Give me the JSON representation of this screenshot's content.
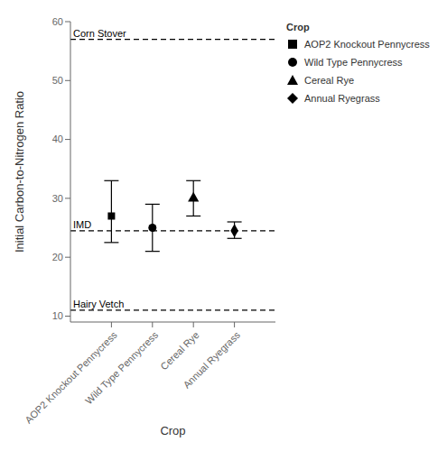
{
  "chart_data": {
    "type": "scatter",
    "categories": [
      "AOP2 Knockout Pennycress",
      "Wild Type Pennycress",
      "Cereal Rye",
      "Annual Ryegrass"
    ],
    "series": [
      {
        "name": "AOP2 Knockout Pennycress",
        "marker": "square",
        "values": [
          27.0,
          null,
          null,
          null
        ],
        "error_upper": [
          6.0,
          null,
          null,
          null
        ],
        "error_lower": [
          4.5,
          null,
          null,
          null
        ]
      },
      {
        "name": "Wild Type Pennycress",
        "marker": "circle",
        "values": [
          null,
          25.0,
          null,
          null
        ],
        "error_upper": [
          null,
          4.0,
          null,
          null
        ],
        "error_lower": [
          null,
          4.0,
          null,
          null
        ]
      },
      {
        "name": "Cereal Rye",
        "marker": "triangle",
        "values": [
          null,
          null,
          30.0,
          null
        ],
        "error_upper": [
          null,
          null,
          3.0,
          null
        ],
        "error_lower": [
          null,
          null,
          3.0,
          null
        ]
      },
      {
        "name": "Annual Ryegrass",
        "marker": "diamond",
        "values": [
          null,
          null,
          null,
          24.5
        ],
        "error_upper": [
          null,
          null,
          null,
          1.5
        ],
        "error_lower": [
          null,
          null,
          null,
          1.3
        ]
      }
    ],
    "color": "black",
    "reference_lines": [
      {
        "label": "Corn Stover",
        "value": 57.0,
        "line_style": "dashed"
      },
      {
        "label": "IMD",
        "value": 24.5,
        "line_style": "dashed"
      },
      {
        "label": "Hairy Vetch",
        "value": 11.0,
        "line_style": "dashed"
      }
    ],
    "ylim": [
      9,
      60
    ],
    "yticks": [
      10,
      20,
      30,
      40,
      50,
      60
    ],
    "ylabel": "Initial Carbon-to-Nitrogen Ratio",
    "xlabel": "Crop",
    "legend": "right",
    "legend_title": "Crop",
    "grid": false
  }
}
